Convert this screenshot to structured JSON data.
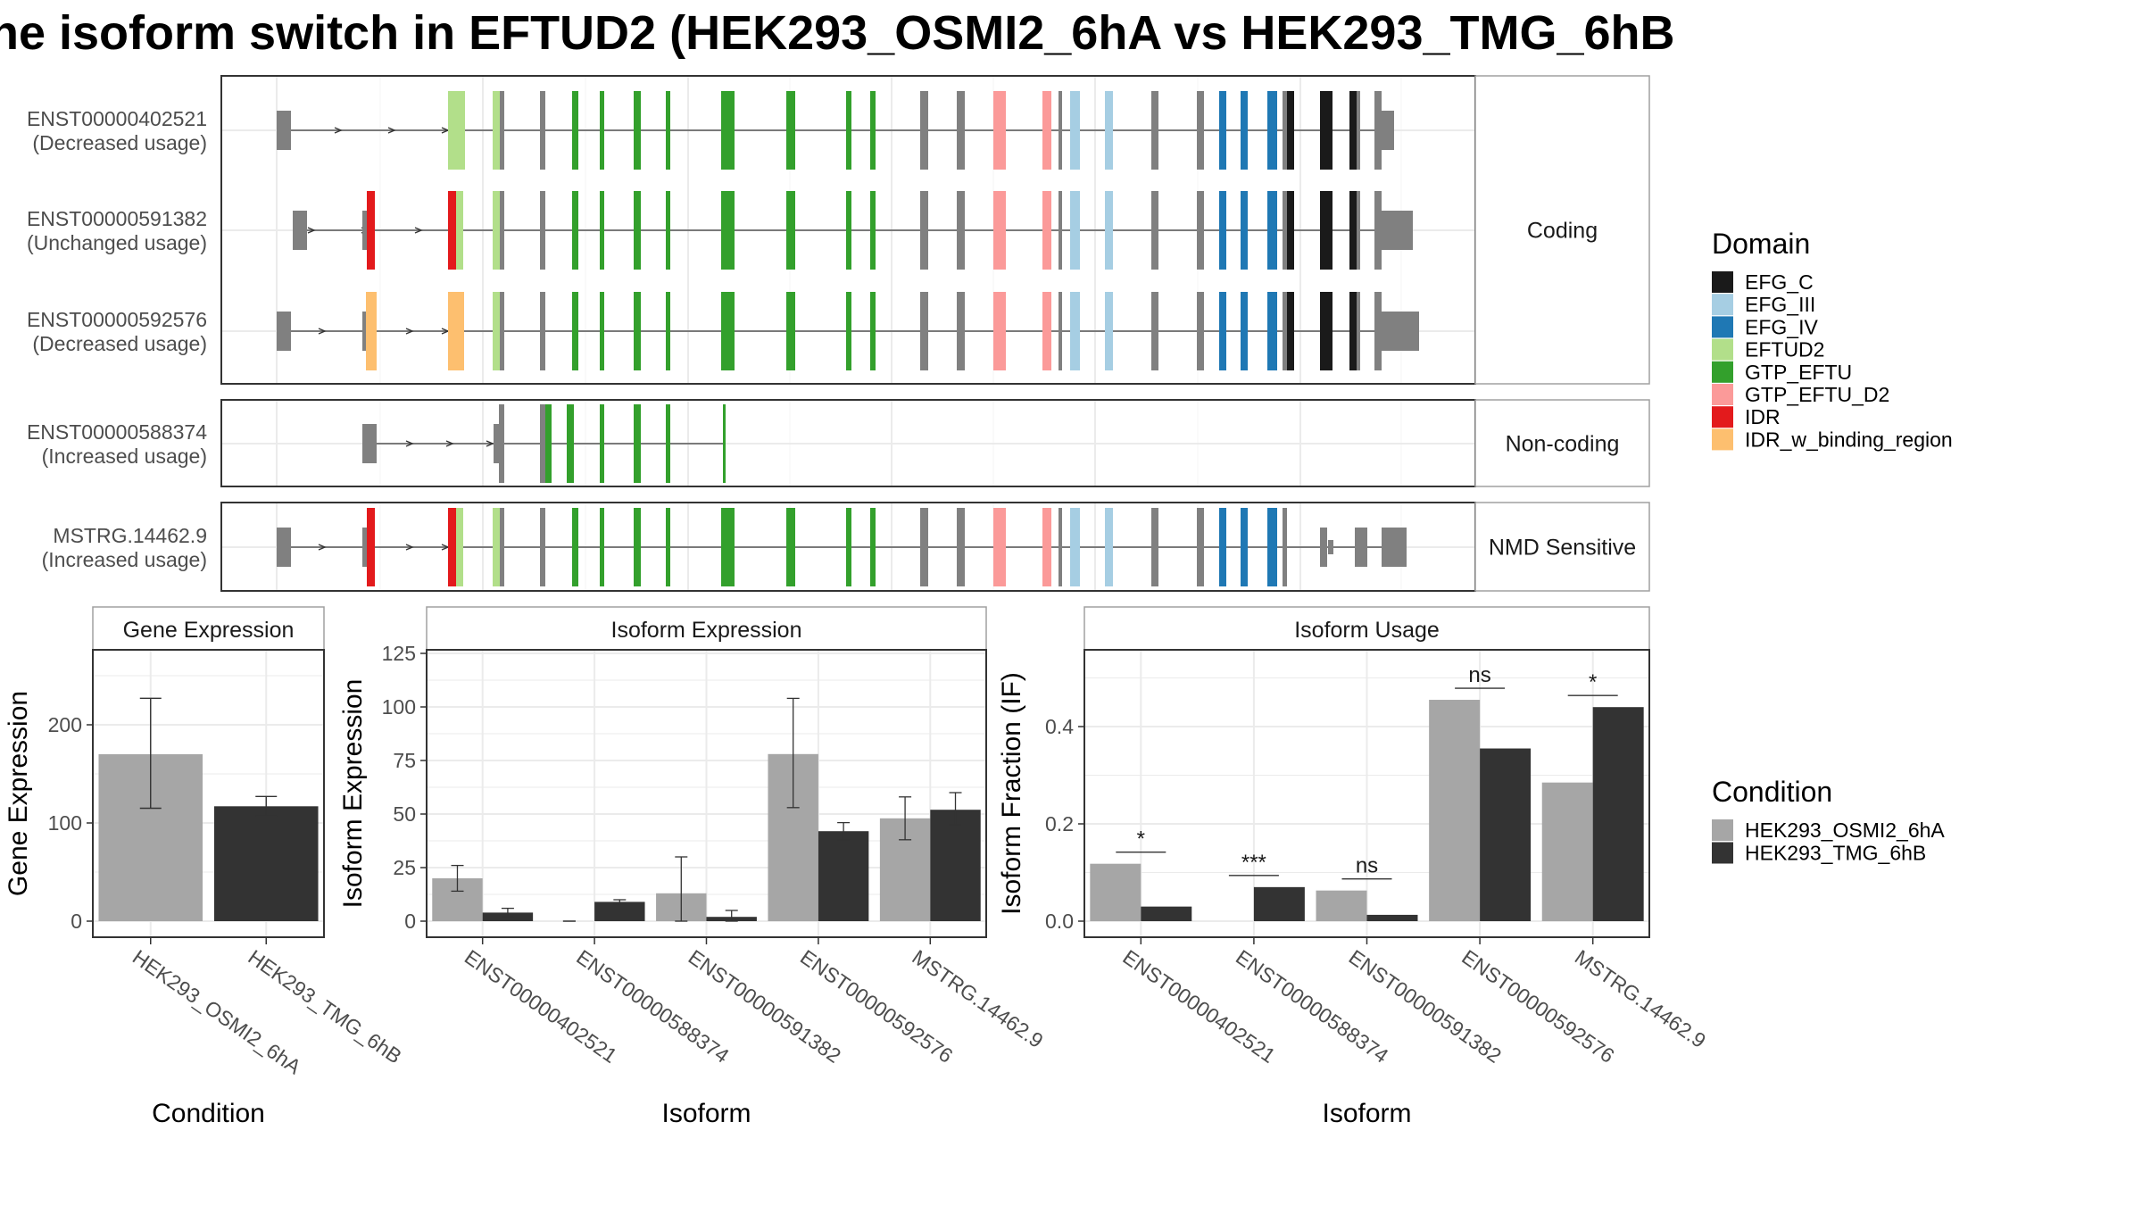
{
  "title": "he isoform switch in EFTUD2 (HEK293_OSMI2_6hA vs HEK293_TMG_6hB",
  "domain_colors": {
    "EFG_C": "#1a1a1a",
    "EFG_III": "#a6cee3",
    "EFG_IV": "#1f78b4",
    "EFTUD2": "#b2df8a",
    "GTP_EFTU": "#33a02c",
    "GTP_EFTU_D2": "#fb9a99",
    "IDR": "#e31a1c",
    "IDR_w_binding_region": "#fdbf6f",
    "none": "#808080"
  },
  "condition_colors": {
    "HEK293_OSMI2_6hA": "#a6a6a6",
    "HEK293_TMG_6hB": "#333333"
  },
  "legend_domain": {
    "title": "Domain",
    "items": [
      "EFG_C",
      "EFG_III",
      "EFG_IV",
      "EFTUD2",
      "GTP_EFTU",
      "GTP_EFTU_D2",
      "IDR",
      "IDR_w_binding_region"
    ]
  },
  "legend_condition": {
    "title": "Condition",
    "items": [
      "HEK293_OSMI2_6hA",
      "HEK293_TMG_6hB"
    ]
  },
  "transcript_panels": [
    {
      "facet": "Coding",
      "transcripts": [
        {
          "id": "ENST00000402521",
          "usage": "(Decreased usage)",
          "variant": "A"
        },
        {
          "id": "ENST00000591382",
          "usage": "(Unchanged usage)",
          "variant": "B"
        },
        {
          "id": "ENST00000592576",
          "usage": "(Decreased usage)",
          "variant": "C"
        }
      ]
    },
    {
      "facet": "Non-coding",
      "transcripts": [
        {
          "id": "ENST00000588374",
          "usage": "(Increased usage)",
          "variant": "D"
        }
      ]
    },
    {
      "facet": "NMD Sensitive",
      "transcripts": [
        {
          "id": "MSTRG.14462.9",
          "usage": "(Increased usage)",
          "variant": "E"
        }
      ]
    }
  ],
  "chart_data": [
    {
      "type": "bar",
      "panel_title": "Gene Expression",
      "xlabel": "Condition",
      "ylabel": "Gene Expression",
      "ylim": [
        0,
        285
      ],
      "yticks": [
        0,
        100,
        200
      ],
      "categories": [
        "HEK293_OSMI2_6hA",
        "HEK293_TMG_6hB"
      ],
      "values": [
        170,
        117
      ],
      "error_bars": [
        [
          115,
          227
        ],
        [
          107,
          127
        ]
      ]
    },
    {
      "type": "bar",
      "panel_title": "Isoform Expression",
      "xlabel": "Isoform",
      "ylabel": "Isoform Expression",
      "ylim": [
        0,
        130
      ],
      "yticks": [
        0,
        25,
        50,
        75,
        100,
        125
      ],
      "categories": [
        "ENST00000402521",
        "ENST00000588374",
        "ENST00000591382",
        "ENST00000592576",
        "MSTRG.14462.9"
      ],
      "series": [
        {
          "name": "HEK293_OSMI2_6hA",
          "values": [
            20,
            0,
            13,
            78,
            48
          ],
          "error_bars": [
            [
              14,
              26
            ],
            [
              0,
              0
            ],
            [
              0,
              30
            ],
            [
              53,
              104
            ],
            [
              38,
              58
            ]
          ]
        },
        {
          "name": "HEK293_TMG_6hB",
          "values": [
            4,
            9,
            2,
            42,
            52
          ],
          "error_bars": [
            [
              2,
              6
            ],
            [
              8,
              10
            ],
            [
              0,
              5
            ],
            [
              38,
              46
            ],
            [
              45,
              60
            ]
          ]
        }
      ]
    },
    {
      "type": "bar",
      "panel_title": "Isoform Usage",
      "xlabel": "Isoform",
      "ylabel": "Isoform Fraction (IF)",
      "ylim": [
        0,
        0.55
      ],
      "yticks": [
        0.0,
        0.2,
        0.4
      ],
      "ytick_labels": [
        "0.0",
        "0.2",
        "0.4"
      ],
      "categories": [
        "ENST00000402521",
        "ENST00000588374",
        "ENST00000591382",
        "ENST00000592576",
        "MSTRG.14462.9"
      ],
      "series": [
        {
          "name": "HEK293_OSMI2_6hA",
          "values": [
            0.118,
            0.0,
            0.063,
            0.455,
            0.285
          ]
        },
        {
          "name": "HEK293_TMG_6hB",
          "values": [
            0.03,
            0.07,
            0.013,
            0.355,
            0.44
          ]
        }
      ],
      "significance": [
        "*",
        "***",
        "ns",
        "ns",
        "*"
      ]
    }
  ]
}
